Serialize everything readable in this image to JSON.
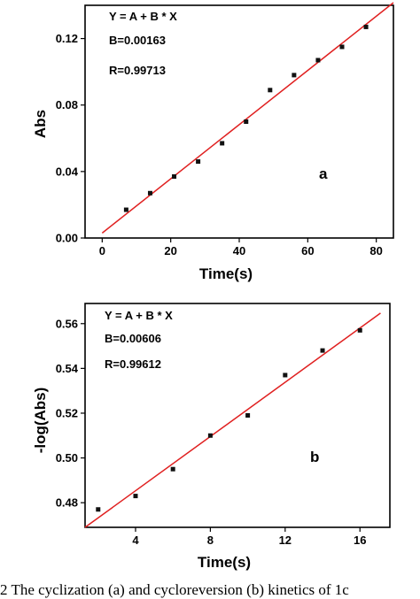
{
  "caption": "2    The cyclization (a) and cycloreversion (b) kinetics of 1c",
  "chart_data": [
    {
      "type": "scatter",
      "panel_label": "a",
      "xlabel": "Time(s)",
      "ylabel": "Abs",
      "xlim": [
        -5,
        85
      ],
      "ylim": [
        0,
        0.14
      ],
      "xticks": [
        "0",
        "20",
        "40",
        "60",
        "80"
      ],
      "yticks": [
        "0.00",
        "0.04",
        "0.08",
        "0.12"
      ],
      "annotations": [
        "Y = A + B * X",
        "B=0.00163",
        "R=0.99713"
      ],
      "series": [
        {
          "x": [
            7,
            14,
            21,
            28,
            35,
            42,
            49,
            56,
            63,
            70,
            77
          ],
          "y": [
            0.017,
            0.027,
            0.037,
            0.046,
            0.057,
            0.07,
            0.089,
            0.098,
            0.107,
            0.115,
            0.127
          ]
        }
      ],
      "fit_line": {
        "x": [
          0,
          85
        ],
        "y": [
          0.003,
          0.1416
        ]
      },
      "grid": false
    },
    {
      "type": "scatter",
      "panel_label": "b",
      "xlabel": "Time(s)",
      "ylabel": "-log(Abs)",
      "xlim": [
        1.3,
        17.6
      ],
      "ylim": [
        0.469,
        0.569
      ],
      "xticks": [
        "4",
        "8",
        "12",
        "16"
      ],
      "yticks": [
        "0.48",
        "0.50",
        "0.52",
        "0.54",
        "0.56"
      ],
      "annotations": [
        "Y = A + B * X",
        "B=0.00606",
        "R=0.99612"
      ],
      "series": [
        {
          "x": [
            2,
            4,
            6,
            8,
            10,
            12,
            14,
            16
          ],
          "y": [
            0.477,
            0.483,
            0.495,
            0.51,
            0.519,
            0.537,
            0.548,
            0.557
          ]
        }
      ],
      "fit_line": {
        "x": [
          1.3,
          17.1
        ],
        "y": [
          0.469,
          0.5647
        ]
      },
      "grid": false
    }
  ]
}
